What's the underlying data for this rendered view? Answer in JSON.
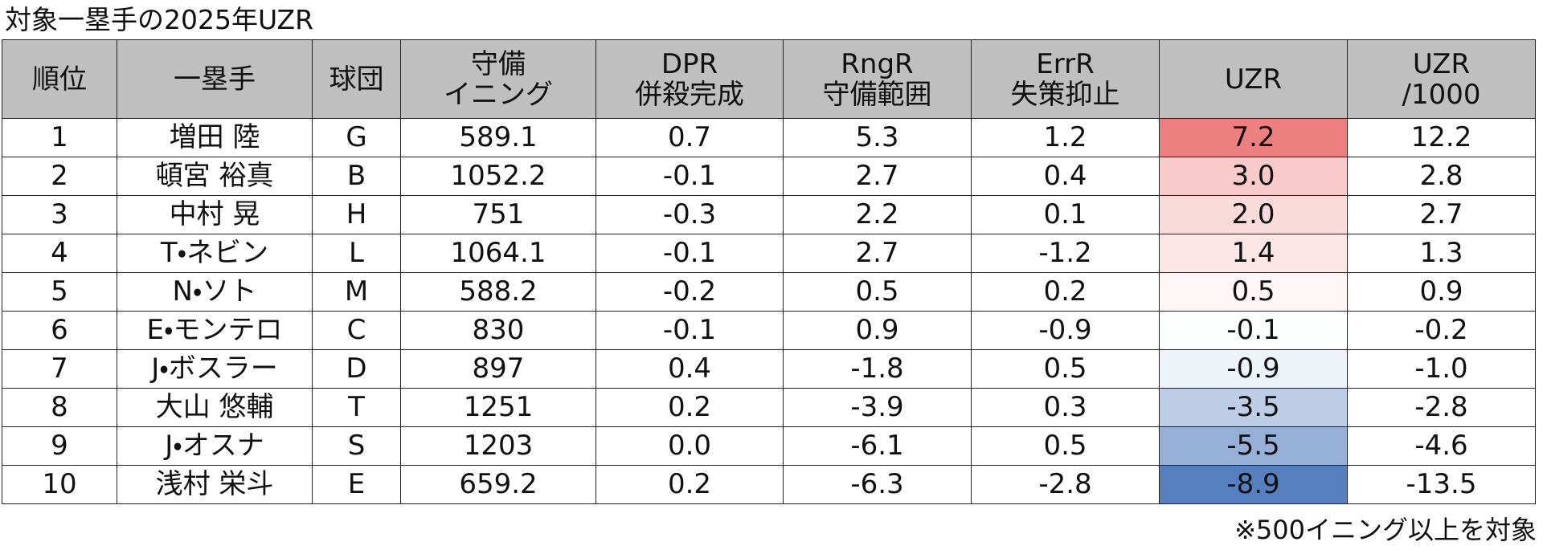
{
  "title": "対象一塁手の2025年UZR",
  "table": {
    "header": [
      [
        "順位"
      ],
      [
        "一塁手"
      ],
      [
        "球団"
      ],
      [
        "守備",
        "イニング"
      ],
      [
        "DPR",
        "併殺完成"
      ],
      [
        "RngR",
        "守備範囲"
      ],
      [
        "ErrR",
        "失策抑止"
      ],
      [
        "UZR"
      ],
      [
        "UZR",
        "/1000"
      ]
    ],
    "rows": [
      [
        "1",
        "増田 陸",
        "G",
        "589.1",
        "0.7",
        "5.3",
        "1.2",
        "7.2",
        "12.2"
      ],
      [
        "2",
        "頓宮 裕真",
        "B",
        "1052.2",
        "-0.1",
        "2.7",
        "0.4",
        "3.0",
        "2.8"
      ],
      [
        "3",
        "中村 晃",
        "H",
        "751",
        "-0.3",
        "2.2",
        "0.1",
        "2.0",
        "2.7"
      ],
      [
        "4",
        "T・ネビン",
        "L",
        "1064.1",
        "-0.1",
        "2.7",
        "-1.2",
        "1.4",
        "1.3"
      ],
      [
        "5",
        "N・ソト",
        "M",
        "588.2",
        "-0.2",
        "0.5",
        "0.2",
        "0.5",
        "0.9"
      ],
      [
        "6",
        "E・モンテロ",
        "C",
        "830",
        "-0.1",
        "0.9",
        "-0.9",
        "-0.1",
        "-0.2"
      ],
      [
        "7",
        "J・ボスラー",
        "D",
        "897",
        "0.4",
        "-1.8",
        "0.5",
        "-0.9",
        "-1.0"
      ],
      [
        "8",
        "大山 悠輔",
        "T",
        "1251",
        "0.2",
        "-3.9",
        "0.3",
        "-3.5",
        "-2.8"
      ],
      [
        "9",
        "J・オスナ",
        "S",
        "1203",
        "0.0",
        "-6.1",
        "0.5",
        "-5.5",
        "-4.6"
      ],
      [
        "10",
        "浅村 栄斗",
        "E",
        "659.2",
        "0.2",
        "-6.3",
        "-2.8",
        "-8.9",
        "-13.5"
      ]
    ]
  },
  "note": "※500イニング以上を対象"
}
